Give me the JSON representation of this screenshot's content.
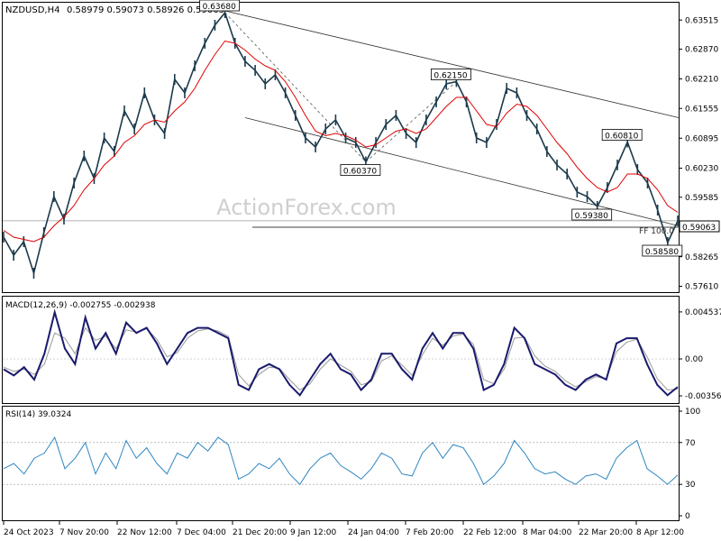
{
  "header": {
    "symbol": "NZDUSD,H4",
    "ohlc": "0.58979 0.59073 0.58926 0.59063"
  },
  "watermark": "ActionForex.com",
  "colors": {
    "candles": "#1b3a4b",
    "ma": "#e00000",
    "macd": "#1a1a6e",
    "signal": "#9a9a9a",
    "rsi": "#2e86c1",
    "channel": "#333333"
  },
  "chart_data": [
    {
      "type": "line",
      "panel": "price",
      "title": "NZDUSD,H4",
      "y_ticks": [
        "0.63515",
        "0.62870",
        "0.62210",
        "0.61555",
        "0.60895",
        "0.60230",
        "0.59585",
        "0.58925",
        "0.58265",
        "0.57610"
      ],
      "ylim": [
        0.5752,
        0.638
      ],
      "current_price": "0.59063",
      "fib_label": "FF 100.0",
      "x_ticks": [
        "24 Oct 2023",
        "7 Nov 20:00",
        "22 Nov 12:00",
        "7 Dec 04:00",
        "21 Dec 20:00",
        "9 Jan 12:00",
        "24 Jan 04:00",
        "7 Feb 20:00",
        "22 Feb 12:00",
        "8 Mar 04:00",
        "22 Mar 20:00",
        "8 Apr 12:00"
      ],
      "annotations": [
        {
          "label": "0.63680",
          "value": 0.6368
        },
        {
          "label": "0.62150",
          "value": 0.6215
        },
        {
          "label": "0.60810",
          "value": 0.6081
        },
        {
          "label": "0.60370",
          "value": 0.6037
        },
        {
          "label": "0.59380",
          "value": 0.5938
        },
        {
          "label": "0.58580",
          "value": 0.5858
        }
      ],
      "series": [
        {
          "name": "",
          "values": [
            0.587,
            0.583,
            0.586,
            0.579,
            0.588,
            0.596,
            0.591,
            0.599,
            0.605,
            0.6,
            0.609,
            0.606,
            0.615,
            0.611,
            0.619,
            0.613,
            0.61,
            0.622,
            0.619,
            0.625,
            0.63,
            0.634,
            0.6368,
            0.63,
            0.626,
            0.624,
            0.621,
            0.623,
            0.619,
            0.614,
            0.609,
            0.607,
            0.611,
            0.613,
            0.609,
            0.608,
            0.6037,
            0.608,
            0.612,
            0.614,
            0.61,
            0.608,
            0.613,
            0.617,
            0.621,
            0.6215,
            0.617,
            0.609,
            0.608,
            0.612,
            0.62,
            0.619,
            0.614,
            0.611,
            0.606,
            0.603,
            0.601,
            0.597,
            0.596,
            0.5938,
            0.598,
            0.603,
            0.6081,
            0.602,
            0.599,
            0.593,
            0.5858,
            0.5906
          ]
        },
        {
          "name": "",
          "values": [
            0.5885,
            0.587,
            0.5865,
            0.586,
            0.587,
            0.5895,
            0.5915,
            0.594,
            0.5975,
            0.6,
            0.603,
            0.605,
            0.608,
            0.6095,
            0.612,
            0.613,
            0.6125,
            0.615,
            0.617,
            0.62,
            0.624,
            0.6275,
            0.6305,
            0.63,
            0.6285,
            0.6265,
            0.625,
            0.624,
            0.6215,
            0.618,
            0.614,
            0.6105,
            0.6095,
            0.61,
            0.6095,
            0.6085,
            0.607,
            0.6075,
            0.609,
            0.6105,
            0.611,
            0.61,
            0.611,
            0.6135,
            0.616,
            0.618,
            0.618,
            0.615,
            0.612,
            0.6115,
            0.6145,
            0.6165,
            0.616,
            0.614,
            0.611,
            0.608,
            0.6055,
            0.6025,
            0.6,
            0.598,
            0.597,
            0.598,
            0.601,
            0.601,
            0.6,
            0.5975,
            0.594,
            0.5925
          ]
        }
      ]
    },
    {
      "type": "line",
      "panel": "macd",
      "title": "MACD(12,26,9) -0.002755 -0.002938",
      "y_ticks": [
        "0.004537",
        "0.00",
        "-0.003568"
      ],
      "ylim": [
        -0.004,
        0.0054
      ],
      "series": [
        {
          "name": "",
          "values": [
            -0.001,
            -0.0016,
            -0.0008,
            -0.002,
            0.0005,
            0.0045,
            0.001,
            -0.0005,
            0.004,
            0.001,
            0.0025,
            0.0005,
            0.0035,
            0.0025,
            0.003,
            0.0015,
            -0.0005,
            0.001,
            0.0025,
            0.003,
            0.003,
            0.0025,
            0.002,
            -0.0025,
            -0.003,
            -0.001,
            -0.0005,
            -0.001,
            -0.0025,
            -0.0035,
            -0.002,
            -0.0005,
            0.0005,
            -0.001,
            -0.0015,
            -0.003,
            -0.002,
            0.0005,
            0.0005,
            -0.001,
            -0.002,
            0.001,
            0.0025,
            0.001,
            0.0025,
            0.0025,
            0.001,
            -0.003,
            -0.0025,
            -0.0005,
            0.003,
            0.002,
            -0.0005,
            -0.001,
            -0.0015,
            -0.0025,
            -0.003,
            -0.002,
            -0.0015,
            -0.002,
            0.0015,
            0.002,
            0.002,
            -0.0005,
            -0.0025,
            -0.0035,
            -0.0027
          ]
        },
        {
          "name": "",
          "values": [
            -0.0008,
            -0.0012,
            -0.001,
            -0.0015,
            -0.0005,
            0.0025,
            0.002,
            0.0005,
            0.003,
            0.0018,
            0.0022,
            0.001,
            0.0028,
            0.0026,
            0.0029,
            0.0019,
            0.0002,
            0.0006,
            0.002,
            0.0027,
            0.0029,
            0.0027,
            0.0022,
            -0.0015,
            -0.0026,
            -0.0015,
            -0.0008,
            -0.0009,
            -0.002,
            -0.003,
            -0.0024,
            -0.001,
            0.0,
            -0.0006,
            -0.0012,
            -0.0025,
            -0.0022,
            -0.0002,
            0.0003,
            -0.0006,
            -0.0016,
            0.0004,
            0.002,
            0.0013,
            0.0022,
            0.0024,
            0.0014,
            -0.002,
            -0.0024,
            -0.001,
            0.002,
            0.0021,
            0.0003,
            -0.0007,
            -0.0012,
            -0.0021,
            -0.0027,
            -0.0022,
            -0.0017,
            -0.0019,
            0.0007,
            0.0016,
            0.0019,
            0.0002,
            -0.0019,
            -0.003,
            -0.0029
          ]
        }
      ]
    },
    {
      "type": "line",
      "panel": "rsi",
      "title": "RSI(14) 39.0324",
      "y_ticks": [
        "100",
        "70",
        "30",
        "0"
      ],
      "ylim": [
        0,
        100
      ],
      "levels": [
        70,
        30
      ],
      "series": [
        {
          "name": "",
          "values": [
            45,
            50,
            40,
            55,
            60,
            75,
            45,
            55,
            70,
            40,
            60,
            45,
            72,
            55,
            65,
            50,
            40,
            60,
            55,
            70,
            62,
            75,
            68,
            35,
            40,
            50,
            45,
            55,
            40,
            30,
            45,
            55,
            60,
            48,
            42,
            35,
            45,
            60,
            55,
            40,
            38,
            60,
            70,
            55,
            68,
            65,
            50,
            30,
            38,
            50,
            72,
            60,
            45,
            40,
            42,
            35,
            30,
            38,
            40,
            35,
            55,
            65,
            72,
            45,
            38,
            30,
            39
          ]
        }
      ]
    }
  ]
}
